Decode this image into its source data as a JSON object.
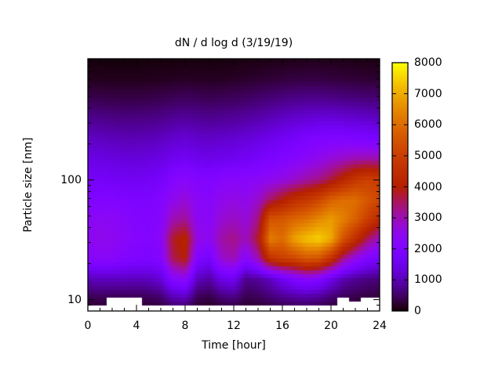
{
  "chart_data": {
    "type": "heatmap",
    "title": "dN / d log d (3/19/19)",
    "xlabel": "Time [hour]",
    "ylabel": "Particle size [nm]",
    "x_axis": {
      "min": 0,
      "max": 24,
      "major_ticks": [
        0,
        4,
        8,
        12,
        16,
        20,
        24
      ],
      "major_tick_labels": [
        "0",
        "4",
        "8",
        "12",
        "16",
        "20",
        "24"
      ],
      "minor_step_hours": 1
    },
    "y_axis": {
      "scale": "log",
      "min_nm": 8.04,
      "max_nm": 1031,
      "major_ticks": [
        10,
        100
      ],
      "major_tick_labels": [
        "10",
        "100"
      ],
      "minor_ticks": [
        9,
        20,
        30,
        40,
        50,
        60,
        70,
        80,
        90,
        200,
        300,
        400,
        500,
        600,
        700,
        800,
        900,
        1000
      ]
    },
    "colorbar": {
      "min": 0,
      "max": 8000,
      "tick_step": 1000,
      "tick_labels": [
        "0",
        "1000",
        "2000",
        "3000",
        "4000",
        "5000",
        "6000",
        "7000",
        "8000"
      ],
      "palette": "gnuplot-default-pm3d rgbformulae 7,5,15 (black-violet-red-yellow)",
      "position": "right"
    },
    "grid_x_hours": [
      0,
      1,
      2,
      3,
      4,
      5,
      6,
      7,
      8,
      9,
      10,
      11,
      12,
      13,
      14,
      15,
      16,
      17,
      18,
      19,
      20,
      21,
      22,
      23,
      24
    ],
    "grid_size_rows_nm": [
      1000,
      700,
      470,
      320,
      220,
      150,
      100,
      68,
      47,
      32,
      22,
      15,
      10.5,
      9
    ],
    "values_dN_dlogd": [
      [
        60,
        60,
        60,
        60,
        60,
        60,
        60,
        60,
        70,
        70,
        70,
        70,
        80,
        90,
        100,
        110,
        120,
        130,
        140,
        140,
        130,
        120,
        110,
        100,
        100
      ],
      [
        140,
        140,
        130,
        130,
        130,
        140,
        150,
        160,
        180,
        170,
        160,
        170,
        190,
        210,
        240,
        270,
        300,
        320,
        330,
        330,
        310,
        290,
        270,
        250,
        240
      ],
      [
        420,
        400,
        380,
        370,
        370,
        390,
        420,
        460,
        500,
        470,
        440,
        460,
        490,
        530,
        580,
        640,
        700,
        740,
        760,
        760,
        740,
        710,
        680,
        640,
        610
      ],
      [
        780,
        750,
        720,
        700,
        700,
        720,
        760,
        820,
        860,
        820,
        790,
        810,
        850,
        900,
        970,
        1060,
        1150,
        1230,
        1300,
        1340,
        1340,
        1300,
        1250,
        1190,
        1130
      ],
      [
        1130,
        1090,
        1050,
        1020,
        1010,
        1040,
        1090,
        1200,
        1260,
        1190,
        1150,
        1180,
        1230,
        1300,
        1390,
        1500,
        1620,
        1750,
        1880,
        1980,
        2030,
        2020,
        1970,
        1900,
        1840
      ],
      [
        1430,
        1390,
        1350,
        1310,
        1300,
        1340,
        1400,
        1560,
        1620,
        1510,
        1470,
        1520,
        1570,
        1650,
        1760,
        1880,
        2010,
        2170,
        2340,
        2520,
        2700,
        2880,
        3020,
        3080,
        3060
      ],
      [
        1740,
        1700,
        1660,
        1620,
        1610,
        1660,
        1760,
        2120,
        2280,
        2100,
        2050,
        2200,
        2280,
        2260,
        2340,
        2450,
        2620,
        2830,
        3100,
        3300,
        3700,
        4250,
        4800,
        5050,
        4900
      ],
      [
        2000,
        2050,
        2050,
        2000,
        1950,
        1950,
        2100,
        2500,
        2700,
        2350,
        2250,
        2500,
        2600,
        2500,
        2800,
        3500,
        4000,
        4500,
        4800,
        5200,
        5800,
        6050,
        6050,
        5600,
        5200
      ],
      [
        2300,
        2400,
        2350,
        2250,
        2100,
        2050,
        2200,
        3000,
        3200,
        2400,
        2300,
        2750,
        2900,
        2700,
        3300,
        5500,
        5600,
        5900,
        6100,
        6500,
        6800,
        6350,
        5800,
        5000,
        4300
      ],
      [
        2400,
        2500,
        2450,
        2300,
        2150,
        2100,
        2300,
        3800,
        4200,
        2600,
        2400,
        3100,
        3300,
        2900,
        3800,
        6300,
        6000,
        6900,
        7300,
        7500,
        7000,
        5500,
        4500,
        3500,
        2800
      ],
      [
        2200,
        2300,
        2250,
        2100,
        2000,
        1950,
        2100,
        3600,
        4000,
        2000,
        1750,
        2800,
        3000,
        2200,
        3000,
        4600,
        5000,
        5200,
        5600,
        5500,
        4600,
        3300,
        2500,
        2000,
        1700
      ],
      [
        1050,
        1100,
        1100,
        1100,
        1080,
        1100,
        1300,
        2200,
        2400,
        1100,
        900,
        1500,
        1600,
        750,
        850,
        1100,
        1600,
        2000,
        2300,
        2100,
        1500,
        1000,
        800,
        700,
        650
      ],
      [
        420,
        450,
        430,
        420,
        420,
        450,
        550,
        1000,
        1100,
        450,
        350,
        600,
        700,
        400,
        450,
        600,
        750,
        850,
        900,
        800,
        600,
        450,
        380,
        330,
        300
      ],
      [
        260,
        280,
        290,
        295,
        300,
        300,
        350,
        600,
        650,
        280,
        220,
        350,
        400,
        250,
        280,
        350,
        450,
        500,
        550,
        480,
        350,
        300,
        250,
        240,
        230
      ]
    ],
    "missing_below_nm_per_hour": [
      8.8,
      8.8,
      10.2,
      10.2,
      10.2,
      8.8,
      8.8,
      8.8,
      8.8,
      8.8,
      8.8,
      8.8,
      8.8,
      8.8,
      8.8,
      8.8,
      8.8,
      8.8,
      8.8,
      8.8,
      8.8,
      10.2,
      9.3,
      10.6,
      10.2
    ],
    "annotations": {
      "background_color": "#ffffff",
      "text_color": "#000000",
      "frame_color": "#000000",
      "peak_value_color": "#ffff00",
      "zero_value_color": "#000000"
    }
  }
}
